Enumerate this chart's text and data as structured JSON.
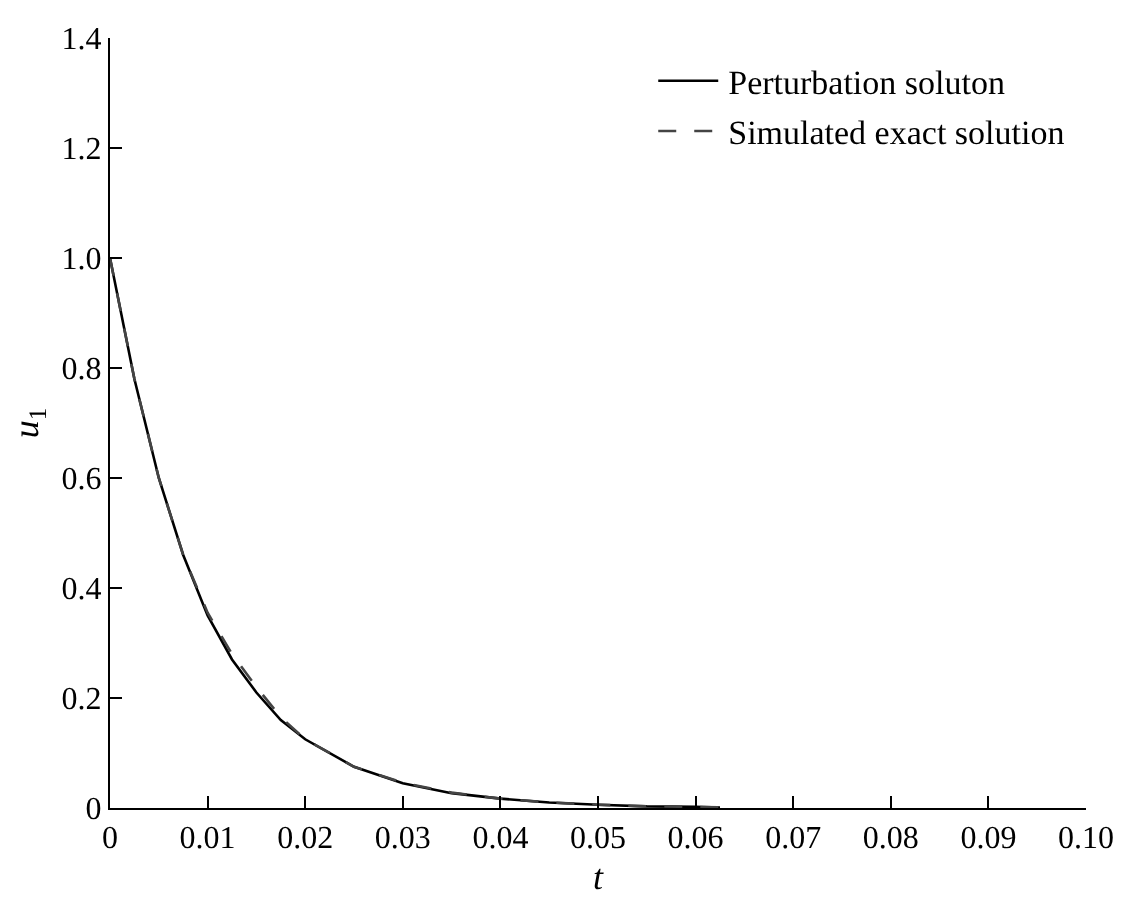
{
  "chart_data": {
    "type": "line",
    "xlabel": "t",
    "ylabel": "u$_{1}$",
    "xlim": [
      0,
      0.1
    ],
    "ylim": [
      0,
      1.4
    ],
    "xticks": [
      0,
      0.01,
      0.02,
      0.03,
      0.04,
      0.05,
      0.06,
      0.07,
      0.08,
      0.09,
      {
        "value": 0.1,
        "label": "0.10"
      }
    ],
    "yticks": [
      0,
      0.2,
      0.4,
      0.6,
      0.8,
      {
        "value": 1.0,
        "label": "1.0"
      },
      1.2,
      1.4
    ],
    "legend": "top right",
    "marker": "none",
    "series": [
      {
        "name": "Perturbation soluton",
        "color": "#000000",
        "line_style": "solid",
        "x": [
          0,
          0.0025,
          0.005,
          0.0075,
          0.01,
          0.0125,
          0.015,
          0.0175,
          0.02,
          0.025,
          0.03,
          0.035,
          0.04,
          0.045,
          0.05,
          0.055,
          0.06,
          0.0625
        ],
        "values": [
          1.0,
          0.78,
          0.6,
          0.46,
          0.35,
          0.27,
          0.21,
          0.16,
          0.125,
          0.075,
          0.045,
          0.027,
          0.017,
          0.01,
          0.006,
          0.003,
          0.002,
          0.001
        ]
      },
      {
        "name": "Simulated exact solution",
        "color": "#444444",
        "line_style": "dashed",
        "x": [
          0,
          0.0025,
          0.005,
          0.0075,
          0.01,
          0.0125,
          0.015,
          0.0175,
          0.02,
          0.025,
          0.03,
          0.035,
          0.04,
          0.045,
          0.05,
          0.055,
          0.06,
          0.0625
        ],
        "values": [
          1.0,
          0.78,
          0.6,
          0.46,
          0.355,
          0.28,
          0.22,
          0.165,
          0.125,
          0.075,
          0.046,
          0.028,
          0.017,
          0.01,
          0.006,
          0.003,
          0.002,
          0.001
        ]
      }
    ]
  }
}
